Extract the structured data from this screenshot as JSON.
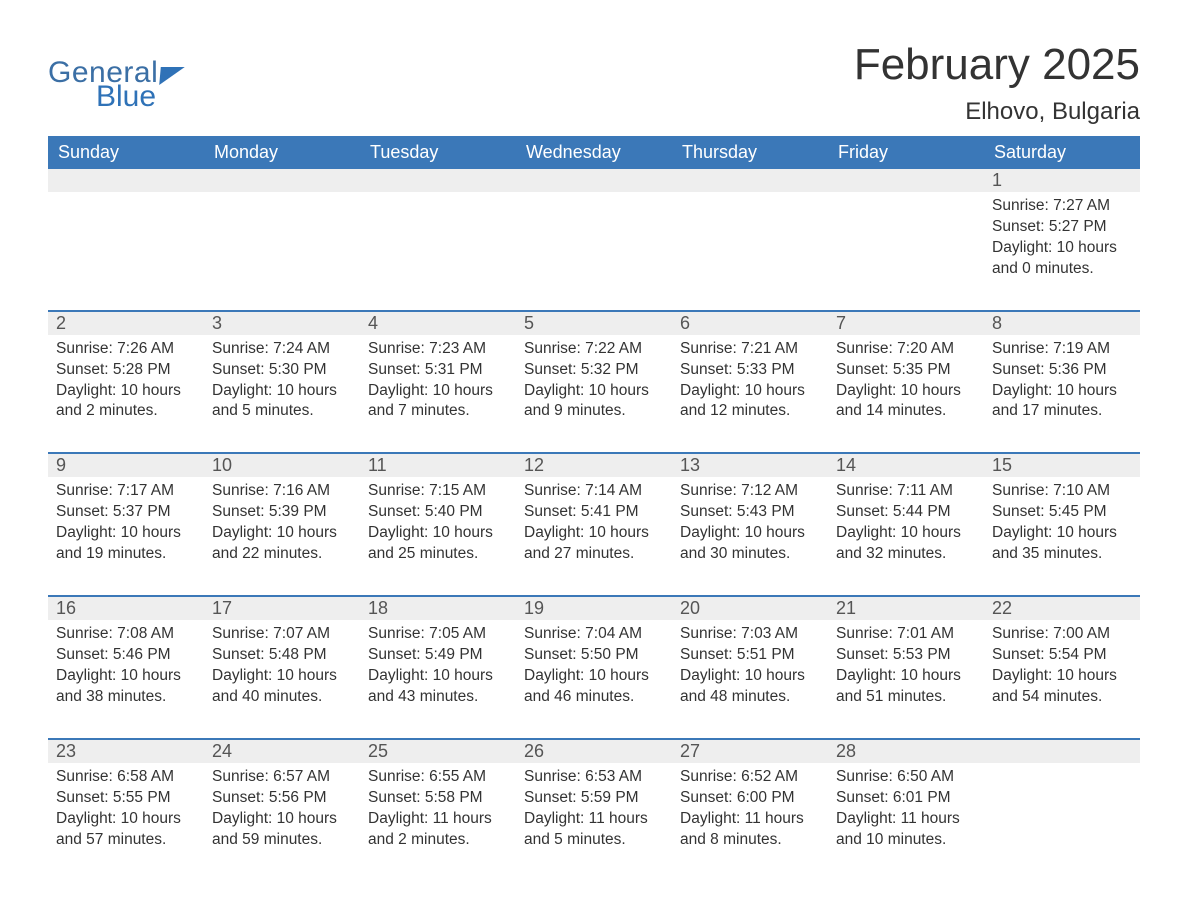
{
  "brand": {
    "word1": "General",
    "word2": "Blue",
    "accent_color": "#2f72b7",
    "text_color": "#3b6fa5"
  },
  "title": {
    "month_year": "February 2025",
    "location": "Elhovo, Bulgaria",
    "title_color": "#333333",
    "title_fontsize": 44,
    "location_fontsize": 24
  },
  "calendar": {
    "header_bg": "#3b78b8",
    "header_text_color": "#ffffff",
    "daynum_bg": "#eeeeee",
    "rule_color": "#3b78b8",
    "background_color": "#ffffff",
    "body_text_color": "#333333",
    "days_of_week": [
      "Sunday",
      "Monday",
      "Tuesday",
      "Wednesday",
      "Thursday",
      "Friday",
      "Saturday"
    ],
    "weeks": [
      [
        null,
        null,
        null,
        null,
        null,
        null,
        {
          "n": "1",
          "sunrise": "7:27 AM",
          "sunset": "5:27 PM",
          "daylight": "10 hours and 0 minutes."
        }
      ],
      [
        {
          "n": "2",
          "sunrise": "7:26 AM",
          "sunset": "5:28 PM",
          "daylight": "10 hours and 2 minutes."
        },
        {
          "n": "3",
          "sunrise": "7:24 AM",
          "sunset": "5:30 PM",
          "daylight": "10 hours and 5 minutes."
        },
        {
          "n": "4",
          "sunrise": "7:23 AM",
          "sunset": "5:31 PM",
          "daylight": "10 hours and 7 minutes."
        },
        {
          "n": "5",
          "sunrise": "7:22 AM",
          "sunset": "5:32 PM",
          "daylight": "10 hours and 9 minutes."
        },
        {
          "n": "6",
          "sunrise": "7:21 AM",
          "sunset": "5:33 PM",
          "daylight": "10 hours and 12 minutes."
        },
        {
          "n": "7",
          "sunrise": "7:20 AM",
          "sunset": "5:35 PM",
          "daylight": "10 hours and 14 minutes."
        },
        {
          "n": "8",
          "sunrise": "7:19 AM",
          "sunset": "5:36 PM",
          "daylight": "10 hours and 17 minutes."
        }
      ],
      [
        {
          "n": "9",
          "sunrise": "7:17 AM",
          "sunset": "5:37 PM",
          "daylight": "10 hours and 19 minutes."
        },
        {
          "n": "10",
          "sunrise": "7:16 AM",
          "sunset": "5:39 PM",
          "daylight": "10 hours and 22 minutes."
        },
        {
          "n": "11",
          "sunrise": "7:15 AM",
          "sunset": "5:40 PM",
          "daylight": "10 hours and 25 minutes."
        },
        {
          "n": "12",
          "sunrise": "7:14 AM",
          "sunset": "5:41 PM",
          "daylight": "10 hours and 27 minutes."
        },
        {
          "n": "13",
          "sunrise": "7:12 AM",
          "sunset": "5:43 PM",
          "daylight": "10 hours and 30 minutes."
        },
        {
          "n": "14",
          "sunrise": "7:11 AM",
          "sunset": "5:44 PM",
          "daylight": "10 hours and 32 minutes."
        },
        {
          "n": "15",
          "sunrise": "7:10 AM",
          "sunset": "5:45 PM",
          "daylight": "10 hours and 35 minutes."
        }
      ],
      [
        {
          "n": "16",
          "sunrise": "7:08 AM",
          "sunset": "5:46 PM",
          "daylight": "10 hours and 38 minutes."
        },
        {
          "n": "17",
          "sunrise": "7:07 AM",
          "sunset": "5:48 PM",
          "daylight": "10 hours and 40 minutes."
        },
        {
          "n": "18",
          "sunrise": "7:05 AM",
          "sunset": "5:49 PM",
          "daylight": "10 hours and 43 minutes."
        },
        {
          "n": "19",
          "sunrise": "7:04 AM",
          "sunset": "5:50 PM",
          "daylight": "10 hours and 46 minutes."
        },
        {
          "n": "20",
          "sunrise": "7:03 AM",
          "sunset": "5:51 PM",
          "daylight": "10 hours and 48 minutes."
        },
        {
          "n": "21",
          "sunrise": "7:01 AM",
          "sunset": "5:53 PM",
          "daylight": "10 hours and 51 minutes."
        },
        {
          "n": "22",
          "sunrise": "7:00 AM",
          "sunset": "5:54 PM",
          "daylight": "10 hours and 54 minutes."
        }
      ],
      [
        {
          "n": "23",
          "sunrise": "6:58 AM",
          "sunset": "5:55 PM",
          "daylight": "10 hours and 57 minutes."
        },
        {
          "n": "24",
          "sunrise": "6:57 AM",
          "sunset": "5:56 PM",
          "daylight": "10 hours and 59 minutes."
        },
        {
          "n": "25",
          "sunrise": "6:55 AM",
          "sunset": "5:58 PM",
          "daylight": "11 hours and 2 minutes."
        },
        {
          "n": "26",
          "sunrise": "6:53 AM",
          "sunset": "5:59 PM",
          "daylight": "11 hours and 5 minutes."
        },
        {
          "n": "27",
          "sunrise": "6:52 AM",
          "sunset": "6:00 PM",
          "daylight": "11 hours and 8 minutes."
        },
        {
          "n": "28",
          "sunrise": "6:50 AM",
          "sunset": "6:01 PM",
          "daylight": "11 hours and 10 minutes."
        },
        null
      ]
    ],
    "labels": {
      "sunrise": "Sunrise:",
      "sunset": "Sunset:",
      "daylight": "Daylight:"
    }
  }
}
